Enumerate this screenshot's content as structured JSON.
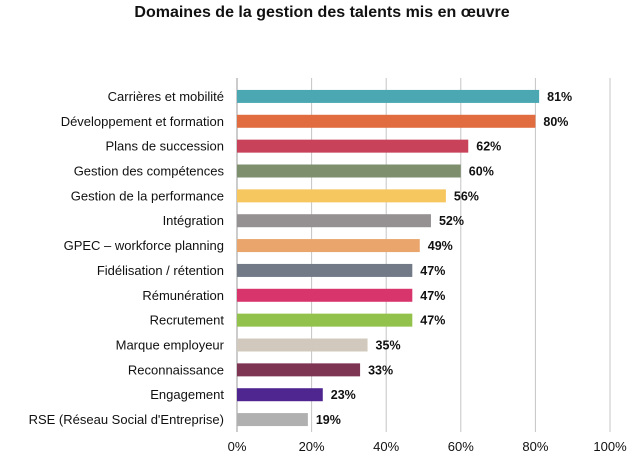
{
  "chart_data": {
    "type": "bar",
    "orientation": "horizontal",
    "title": "Domaines de la gestion des talents mis en œuvre",
    "xlabel": "",
    "ylabel": "",
    "xlim": [
      0,
      100
    ],
    "x_ticks": [
      "0%",
      "20%",
      "40%",
      "60%",
      "80%",
      "100%"
    ],
    "grid": true,
    "legend": "none",
    "categories": [
      "Carrières et mobilité",
      "Développement et formation",
      "Plans de succession",
      "Gestion des compétences",
      "Gestion de la performance",
      "Intégration",
      "GPEC – workforce planning",
      "Fidélisation / rétention",
      "Rémunération",
      "Recrutement",
      "Marque employeur",
      "Reconnaissance",
      "Engagement",
      "RSE (Réseau Social d'Entreprise)"
    ],
    "values": [
      81,
      80,
      62,
      60,
      56,
      52,
      49,
      47,
      47,
      47,
      35,
      33,
      23,
      19
    ],
    "value_labels": [
      "81%",
      "80%",
      "62%",
      "60%",
      "56%",
      "52%",
      "49%",
      "47%",
      "47%",
      "47%",
      "35%",
      "33%",
      "23%",
      "19%"
    ],
    "colors": [
      "#4ba8b2",
      "#e06c3f",
      "#c8435a",
      "#7e8f6e",
      "#f6c65f",
      "#959192",
      "#e9a56b",
      "#737a87",
      "#d8356c",
      "#93c24c",
      "#d1c9bd",
      "#7d3553",
      "#4f2690",
      "#b0b0b0"
    ]
  }
}
